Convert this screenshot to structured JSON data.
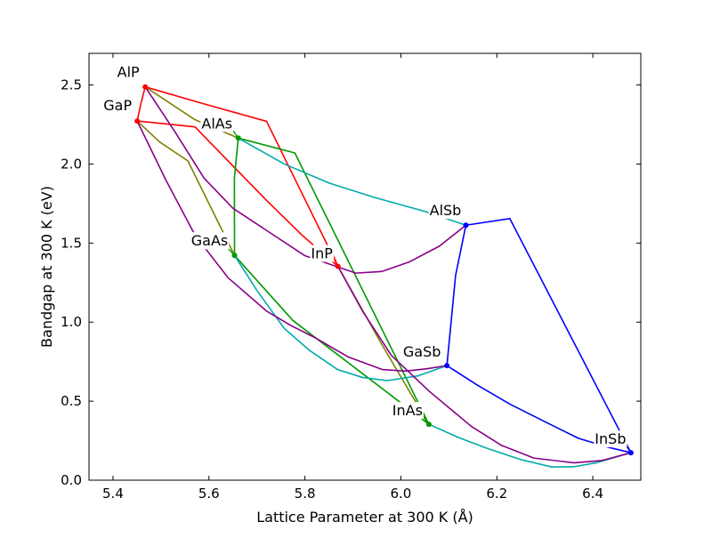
{
  "chart_data": {
    "type": "line",
    "title": "",
    "xlabel": "Lattice Parameter at 300 K (Å)",
    "ylabel": "Bandgap at 300 K (eV)",
    "xlim": [
      5.35,
      6.5
    ],
    "ylim": [
      0.0,
      2.7
    ],
    "xticks": [
      "5.4",
      "5.6",
      "5.8",
      "6.0",
      "6.2",
      "6.4"
    ],
    "yticks": [
      "0.0",
      "0.5",
      "1.0",
      "1.5",
      "2.0",
      "2.5"
    ],
    "grid": false,
    "colors": {
      "phosphide": "#ff0000",
      "arsenide": "#009900",
      "antimonide": "#0000ff",
      "P-As": "#808000",
      "As-Sb": "#00aaaa",
      "P-Sb": "#880088"
    },
    "binaries": [
      {
        "name": "AlP",
        "x": 5.4672,
        "y": 2.488,
        "color": "#ff0000"
      },
      {
        "name": "GaP",
        "x": 5.4505,
        "y": 2.272,
        "color": "#ff0000"
      },
      {
        "name": "InP",
        "x": 5.8687,
        "y": 1.353,
        "color": "#ff0000"
      },
      {
        "name": "AlAs",
        "x": 5.6611,
        "y": 2.164,
        "color": "#009900"
      },
      {
        "name": "GaAs",
        "x": 5.6533,
        "y": 1.422,
        "color": "#009900"
      },
      {
        "name": "InAs",
        "x": 6.0583,
        "y": 0.354,
        "color": "#009900"
      },
      {
        "name": "AlSb",
        "x": 6.1355,
        "y": 1.613,
        "color": "#0000ff"
      },
      {
        "name": "GaSb",
        "x": 6.0959,
        "y": 0.725,
        "color": "#0000ff"
      },
      {
        "name": "InSb",
        "x": 6.4794,
        "y": 0.174,
        "color": "#0000ff"
      }
    ],
    "series": [
      {
        "color": "#ff0000",
        "points": [
          [
            5.4672,
            2.488
          ],
          [
            5.458,
            2.38
          ],
          [
            5.4505,
            2.272
          ]
        ]
      },
      {
        "color": "#ff0000",
        "points": [
          [
            5.4672,
            2.488
          ],
          [
            5.59,
            2.38
          ],
          [
            5.72,
            2.27
          ],
          [
            5.8687,
            1.353
          ]
        ]
      },
      {
        "color": "#ff0000",
        "points": [
          [
            5.4505,
            2.272
          ],
          [
            5.571,
            2.235
          ],
          [
            5.63,
            2.05
          ],
          [
            5.72,
            1.77
          ],
          [
            5.794,
            1.55
          ],
          [
            5.8687,
            1.353
          ]
        ]
      },
      {
        "color": "#808000",
        "points": [
          [
            5.4672,
            2.488
          ],
          [
            5.571,
            2.28
          ],
          [
            5.6611,
            2.164
          ]
        ]
      },
      {
        "color": "#808000",
        "points": [
          [
            5.4505,
            2.272
          ],
          [
            5.497,
            2.14
          ],
          [
            5.556,
            2.02
          ],
          [
            5.6533,
            1.422
          ]
        ]
      },
      {
        "color": "#808000",
        "points": [
          [
            5.8687,
            1.353
          ],
          [
            5.96,
            0.86
          ],
          [
            6.0583,
            0.354
          ]
        ]
      },
      {
        "color": "#009900",
        "points": [
          [
            5.6611,
            2.164
          ],
          [
            5.653,
            1.91
          ],
          [
            5.6533,
            1.422
          ]
        ]
      },
      {
        "color": "#009900",
        "points": [
          [
            5.6611,
            2.164
          ],
          [
            5.779,
            2.07
          ],
          [
            6.0583,
            0.354
          ]
        ]
      },
      {
        "color": "#009900",
        "points": [
          [
            5.6533,
            1.422
          ],
          [
            5.775,
            1.01
          ],
          [
            6.0583,
            0.354
          ]
        ]
      },
      {
        "color": "#00aaaa",
        "points": [
          [
            5.6611,
            2.164
          ],
          [
            5.757,
            2.0
          ],
          [
            5.85,
            1.88
          ],
          [
            5.943,
            1.79
          ],
          [
            6.05,
            1.7
          ],
          [
            6.1355,
            1.613
          ]
        ]
      },
      {
        "color": "#00aaaa",
        "points": [
          [
            5.6533,
            1.422
          ],
          [
            5.7,
            1.2
          ],
          [
            5.757,
            0.96
          ],
          [
            5.81,
            0.82
          ],
          [
            5.868,
            0.7
          ],
          [
            5.92,
            0.65
          ],
          [
            5.971,
            0.63
          ],
          [
            6.036,
            0.66
          ],
          [
            6.0959,
            0.725
          ]
        ]
      },
      {
        "color": "#00aaaa",
        "points": [
          [
            6.0583,
            0.354
          ],
          [
            6.12,
            0.27
          ],
          [
            6.184,
            0.197
          ],
          [
            6.25,
            0.13
          ],
          [
            6.314,
            0.084
          ],
          [
            6.36,
            0.085
          ],
          [
            6.407,
            0.11
          ],
          [
            6.4794,
            0.174
          ]
        ]
      },
      {
        "color": "#880088",
        "points": [
          [
            5.4672,
            2.488
          ],
          [
            5.53,
            2.2
          ],
          [
            5.59,
            1.91
          ],
          [
            5.65,
            1.72
          ],
          [
            5.72,
            1.58
          ],
          [
            5.8,
            1.42
          ],
          [
            5.906,
            1.31
          ],
          [
            5.96,
            1.32
          ],
          [
            6.017,
            1.38
          ],
          [
            6.08,
            1.48
          ],
          [
            6.1355,
            1.613
          ]
        ]
      },
      {
        "color": "#880088",
        "points": [
          [
            5.4505,
            2.272
          ],
          [
            5.51,
            1.9
          ],
          [
            5.571,
            1.55
          ],
          [
            5.64,
            1.28
          ],
          [
            5.72,
            1.07
          ],
          [
            5.77,
            0.98
          ],
          [
            5.822,
            0.9
          ],
          [
            5.89,
            0.78
          ],
          [
            5.961,
            0.7
          ],
          [
            6.01,
            0.69
          ],
          [
            6.054,
            0.705
          ],
          [
            6.0959,
            0.725
          ]
        ]
      },
      {
        "color": "#880088",
        "points": [
          [
            5.8687,
            1.353
          ],
          [
            5.92,
            1.07
          ],
          [
            5.98,
            0.79
          ],
          [
            6.06,
            0.56
          ],
          [
            6.147,
            0.34
          ],
          [
            6.21,
            0.22
          ],
          [
            6.277,
            0.14
          ],
          [
            6.361,
            0.11
          ],
          [
            6.42,
            0.125
          ],
          [
            6.4794,
            0.174
          ]
        ]
      },
      {
        "color": "#0000ff",
        "points": [
          [
            6.1355,
            1.613
          ],
          [
            6.114,
            1.295
          ],
          [
            6.0959,
            0.725
          ]
        ]
      },
      {
        "color": "#0000ff",
        "points": [
          [
            6.1355,
            1.613
          ],
          [
            6.227,
            1.655
          ],
          [
            6.4794,
            0.174
          ]
        ]
      },
      {
        "color": "#0000ff",
        "points": [
          [
            6.0959,
            0.725
          ],
          [
            6.16,
            0.6
          ],
          [
            6.228,
            0.48
          ],
          [
            6.3,
            0.37
          ],
          [
            6.37,
            0.265
          ],
          [
            6.43,
            0.21
          ],
          [
            6.4794,
            0.174
          ]
        ]
      }
    ]
  }
}
